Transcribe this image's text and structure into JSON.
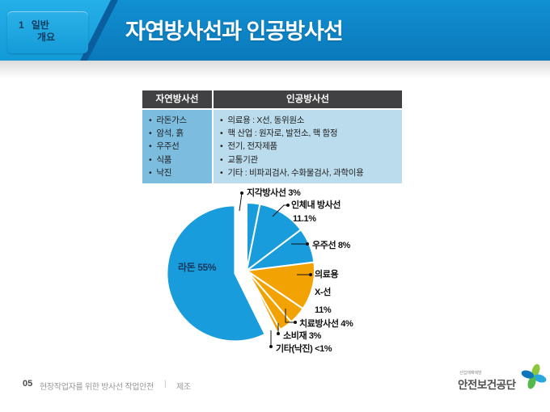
{
  "header": {
    "unit_number": "1",
    "unit_label_line1": "일반",
    "unit_label_line2": "개요",
    "title": "자연방사선과 인공방사선"
  },
  "table": {
    "columns": [
      "자연방사선",
      "인공방사선"
    ],
    "natural_items": [
      "라돈가스",
      "암석, 흙",
      "우주선",
      "식품",
      "낙진"
    ],
    "artificial_items": [
      "의료용 : X선, 동위원소",
      "핵 산업 : 원자로, 발전소, 핵 함정",
      "전기, 전자제품",
      "교통기관",
      "기타 : 비파괴검사, 수화물검사, 과학이용"
    ]
  },
  "chart_data": {
    "type": "pie",
    "title": "",
    "start_angle_deg": -90,
    "direction": "clockwise",
    "legend_position": "none",
    "colors": {
      "natural": "#189cdb",
      "artificial": "#f2a202"
    },
    "slices": [
      {
        "label": "지각방사선",
        "value": 3,
        "value_label": "3%",
        "color": "#189cdb",
        "exploded": false
      },
      {
        "label": "인체내 방사선",
        "value": 11.1,
        "value_label": "11.1%",
        "color": "#189cdb",
        "exploded": false
      },
      {
        "label": "우주선",
        "value": 8,
        "value_label": "8%",
        "color": "#189cdb",
        "exploded": false
      },
      {
        "label": "의료용 X-선",
        "label_lines": [
          "의료용",
          "X-선"
        ],
        "value": 11,
        "value_label": "11%",
        "color": "#f2a202",
        "exploded": false
      },
      {
        "label": "치료방사선",
        "value": 4,
        "value_label": "4%",
        "color": "#f2a202",
        "exploded": false
      },
      {
        "label": "소비재",
        "value": 3,
        "value_label": "3%",
        "color": "#f2a202",
        "exploded": false
      },
      {
        "label": "기타(낙진)",
        "value": 0.9,
        "value_label": "<1%",
        "color": "#f2a202",
        "exploded": false
      },
      {
        "label": "라돈",
        "value": 55,
        "value_label": "55%",
        "color": "#189cdb",
        "exploded": true
      }
    ]
  },
  "footer": {
    "page_number": "05",
    "doc_title": "현장작업자를 위한 방사선 작업안전",
    "separator": "|",
    "category": "제조",
    "logo_tagline": "산업재해예방",
    "logo_name": "안전보건공단"
  }
}
